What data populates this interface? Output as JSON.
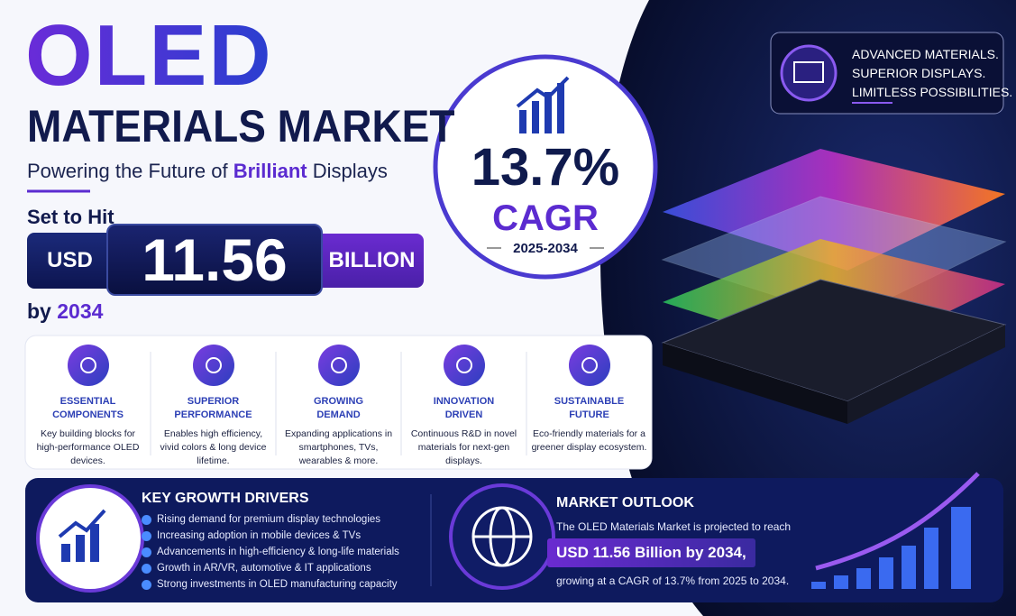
{
  "header": {
    "title_line1": "OLED",
    "title_line2": "MATERIALS MARKET",
    "subtitle_pre": "Powering the Future of ",
    "subtitle_highlight": "Brilliant",
    "subtitle_post": " Displays"
  },
  "forecast": {
    "lead": "Set to Hit",
    "currency": "USD",
    "amount": "11.56",
    "unit": "BILLION",
    "by": "by ",
    "year": "2034"
  },
  "cagr_badge": {
    "value": "13.7%",
    "label": "CAGR",
    "period": "2025-2034"
  },
  "tagline": {
    "lines": [
      "ADVANCED MATERIALS.",
      "SUPERIOR DISPLAYS.",
      "LIMITLESS POSSIBILITIES."
    ]
  },
  "features": [
    {
      "title": "ESSENTIAL COMPONENTS",
      "description": "Key building blocks for high-performance OLED devices."
    },
    {
      "title": "SUPERIOR PERFORMANCE",
      "description": "Enables high efficiency, vivid colors & long device lifetime."
    },
    {
      "title": "GROWING DEMAND",
      "description": "Expanding applications in smartphones, TVs, wearables & more."
    },
    {
      "title": "INNOVATION DRIVEN",
      "description": "Continuous R&D in novel materials for next-gen displays."
    },
    {
      "title": "SUSTAINABLE FUTURE",
      "description": "Eco-friendly materials for a greener display ecosystem."
    }
  ],
  "growth_drivers": {
    "title": "KEY GROWTH DRIVERS",
    "items": [
      "Rising demand for premium display technologies",
      "Increasing adoption in mobile devices & TVs",
      "Advancements in high-efficiency & long-life materials",
      "Growth in AR/VR, automotive & IT applications",
      "Strong investments in OLED manufacturing capacity"
    ]
  },
  "market_outlook": {
    "title": "MARKET OUTLOOK",
    "text_before": "The OLED Materials Market is projected to reach",
    "highlight": "USD 11.56 Billion by 2034,",
    "text_after": "growing at a CAGR of 13.7% from 2025 to 2034."
  }
}
